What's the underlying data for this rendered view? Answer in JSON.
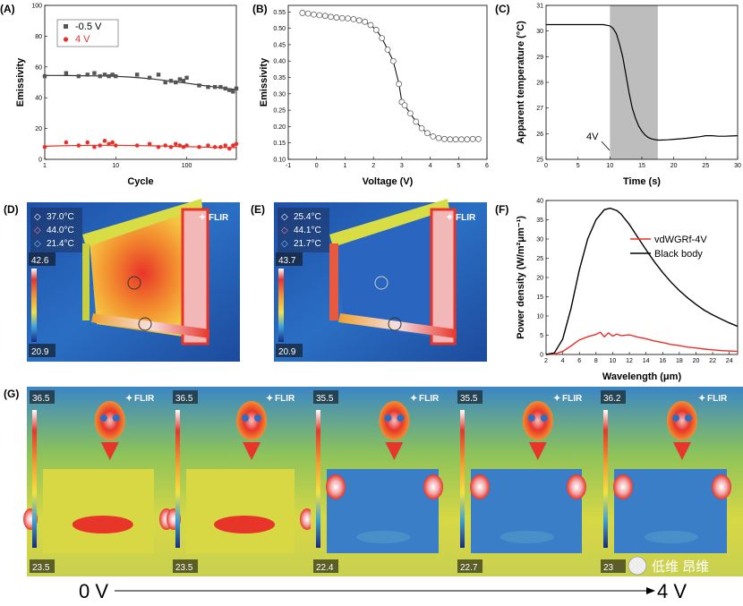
{
  "chart_data": [
    {
      "panel": "(A)",
      "type": "scatter",
      "xlabel": "Cycle",
      "ylabel": "Emissivity",
      "xscale": "log",
      "xlim": [
        1,
        500
      ],
      "ylim": [
        0,
        100
      ],
      "xticks": [
        1,
        10,
        100
      ],
      "yticks": [
        0,
        20,
        40,
        60,
        80,
        100
      ],
      "legend": "top-left",
      "series": [
        {
          "name": "-0.5 V",
          "color": "#555555",
          "marker": "square",
          "x": [
            1,
            2,
            3,
            4,
            5,
            6,
            7,
            8,
            9,
            10,
            20,
            30,
            40,
            50,
            60,
            70,
            80,
            90,
            100,
            150,
            200,
            250,
            300,
            350,
            400,
            450,
            500
          ],
          "y": [
            54,
            56,
            54,
            55,
            56,
            54,
            55,
            54,
            55,
            54,
            55,
            53,
            55,
            50,
            51,
            50,
            52,
            51,
            53,
            48,
            47,
            47,
            47,
            46,
            45,
            44,
            46
          ],
          "fit": [
            54.5,
            54.5,
            54.4,
            54.3,
            54.2,
            54.1,
            53.9,
            53.5,
            52.9,
            52.2,
            51.3,
            50.3,
            49.3,
            48.2,
            47.2,
            46.2,
            45.3
          ]
        },
        {
          "name": "4 V",
          "color": "#e8302a",
          "marker": "circle",
          "x": [
            1,
            2,
            3,
            4,
            5,
            6,
            7,
            8,
            9,
            10,
            20,
            30,
            40,
            50,
            60,
            70,
            80,
            90,
            100,
            150,
            200,
            250,
            300,
            350,
            400,
            450,
            500
          ],
          "y": [
            8,
            11,
            9,
            11,
            8,
            9,
            12,
            10,
            11,
            9,
            9,
            10,
            8,
            9,
            8,
            10,
            9,
            8,
            9,
            8,
            9,
            8,
            8,
            9,
            7,
            9,
            10
          ],
          "fit": [
            8.5,
            8.7,
            8.9,
            9.0,
            9.1,
            9.1,
            9.1,
            9.0,
            8.9,
            8.8,
            8.6,
            8.4,
            8.2,
            8.0,
            7.8,
            7.7,
            7.6
          ]
        }
      ]
    },
    {
      "panel": "(B)",
      "type": "line",
      "xlabel": "Voltage (V)",
      "ylabel": "Emissivity",
      "xlim": [
        -1,
        6
      ],
      "ylim": [
        0.1,
        0.57
      ],
      "xticks": [
        -1,
        0,
        1,
        2,
        3,
        4,
        5,
        6
      ],
      "yticks": [
        0.1,
        0.15,
        0.2,
        0.25,
        0.3,
        0.35,
        0.4,
        0.45,
        0.5,
        0.55
      ],
      "x": [
        -0.5,
        -0.3,
        -0.1,
        0.1,
        0.3,
        0.5,
        0.7,
        0.9,
        1.1,
        1.3,
        1.5,
        1.7,
        1.9,
        2.1,
        2.3,
        2.5,
        2.7,
        2.9,
        3.0,
        3.1,
        3.3,
        3.5,
        3.7,
        3.9,
        4.1,
        4.3,
        4.5,
        4.7,
        4.9,
        5.1,
        5.3,
        5.5,
        5.7
      ],
      "y": [
        0.547,
        0.545,
        0.542,
        0.54,
        0.538,
        0.535,
        0.533,
        0.531,
        0.53,
        0.528,
        0.524,
        0.52,
        0.51,
        0.495,
        0.47,
        0.435,
        0.4,
        0.33,
        0.275,
        0.265,
        0.24,
        0.215,
        0.195,
        0.18,
        0.17,
        0.165,
        0.162,
        0.161,
        0.161,
        0.161,
        0.161,
        0.162,
        0.162
      ]
    },
    {
      "panel": "(C)",
      "type": "line",
      "xlabel": "Time (s)",
      "ylabel": "Apparent temperature (°C)",
      "xlim": [
        0,
        30
      ],
      "ylim": [
        25,
        31
      ],
      "xticks": [
        0,
        5,
        10,
        15,
        20,
        25,
        30
      ],
      "yticks": [
        25,
        26,
        27,
        28,
        29,
        30,
        31
      ],
      "shaded_region": [
        10,
        17.5
      ],
      "annotation": "4V",
      "x": [
        0,
        2,
        4,
        6,
        8,
        9,
        10,
        10.5,
        11,
        11.5,
        12,
        12.5,
        13,
        13.5,
        14,
        14.5,
        15,
        15.5,
        16,
        16.5,
        17,
        17.5,
        18,
        19,
        20,
        21,
        22,
        23,
        24,
        25,
        26,
        27,
        28,
        29,
        30
      ],
      "y": [
        30.25,
        30.25,
        30.25,
        30.25,
        30.25,
        30.25,
        30.2,
        30.1,
        29.9,
        29.5,
        29.0,
        28.3,
        27.6,
        27.0,
        26.6,
        26.3,
        26.1,
        25.95,
        25.85,
        25.8,
        25.77,
        25.75,
        25.75,
        25.76,
        25.78,
        25.8,
        25.82,
        25.85,
        25.88,
        25.92,
        25.92,
        25.9,
        25.9,
        25.91,
        25.92
      ]
    },
    {
      "panel": "(F)",
      "type": "line",
      "xlabel": "Wavelength (μm)",
      "ylabel": "Power density (W/m²μm⁻¹)",
      "xlim": [
        2,
        25
      ],
      "ylim": [
        0,
        40
      ],
      "xticks": [
        2,
        4,
        6,
        8,
        10,
        12,
        14,
        16,
        18,
        20,
        22,
        24
      ],
      "yticks": [
        0,
        5,
        10,
        15,
        20,
        25,
        30,
        35,
        40
      ],
      "legend": "top-right",
      "series": [
        {
          "name": "vdWGRf-4V",
          "color": "#e8302a",
          "x": [
            2,
            3,
            4,
            5,
            6,
            7,
            8,
            8.5,
            9,
            9.5,
            10,
            10.5,
            11,
            12,
            13,
            14,
            15,
            16,
            17,
            18,
            19,
            20,
            21,
            22,
            23,
            24,
            25
          ],
          "y": [
            0,
            0.1,
            0.8,
            2.2,
            3.8,
            4.6,
            5.2,
            5.8,
            4.6,
            5.6,
            4.8,
            5.3,
            4.9,
            5.1,
            4.5,
            4.1,
            3.5,
            3.1,
            2.6,
            2.3,
            1.9,
            1.7,
            1.4,
            1.2,
            1.0,
            0.9,
            0.8
          ]
        },
        {
          "name": "Black body",
          "color": "#000000",
          "x": [
            2,
            3,
            4,
            5,
            6,
            7,
            8,
            9,
            9.7,
            10.5,
            11,
            12,
            13,
            14,
            15,
            16,
            17,
            18,
            19,
            20,
            21,
            22,
            23,
            24,
            25
          ],
          "y": [
            0,
            0.4,
            4,
            12,
            22,
            30,
            35,
            37.6,
            38,
            37.4,
            36.5,
            33.8,
            30.5,
            27.2,
            24.1,
            21.3,
            18.8,
            16.6,
            14.7,
            13.0,
            11.5,
            10.3,
            9.2,
            8.2,
            7.3
          ]
        }
      ]
    }
  ],
  "thermal_d": {
    "panel": "(D)",
    "spot1": "37.0°C",
    "spot2": "44.0°C",
    "spot3": "21.4°C",
    "max": "42.6",
    "min": "20.9",
    "brand": "FLIR"
  },
  "thermal_e": {
    "panel": "(E)",
    "spot1": "25.4°C",
    "spot2": "44.1°C",
    "spot3": "21.7°C",
    "max": "43.7",
    "min": "20.9",
    "brand": "FLIR"
  },
  "thermal_g": {
    "panel": "(G)",
    "brand": "FLIR",
    "frames": [
      {
        "max": "36.5",
        "min": "23.5"
      },
      {
        "max": "36.5",
        "min": "23.5"
      },
      {
        "max": "35.5",
        "min": "22.4"
      },
      {
        "max": "35.5",
        "min": "22.7"
      },
      {
        "max": "36.2",
        "min": "23"
      }
    ],
    "arrow_start": "0 V",
    "arrow_end": "4 V"
  },
  "watermark": "低维 昂维"
}
